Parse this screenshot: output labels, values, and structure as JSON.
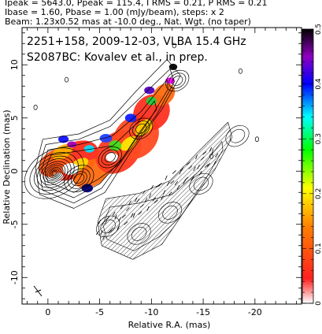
{
  "header": {
    "line1": "Ipeak = 5643.0, Ppeak = 115.4, I RMS = 0.21, P RMS = 0.21",
    "line2": "Ibase = 1.60, Pbase = 1.00 (mJy/beam), steps: x 2",
    "line3": "Beam: 1.23x0.52 mas at -10.0 deg., Nat. Wgt. (no taper)"
  },
  "chart_data": {
    "type": "heatmap",
    "title_line1": "2251+158, 2009-12-03, VLBA 15.4 GHz",
    "title_line2": "S2087BC: Kovalev et al., in prep.",
    "xlabel": "Relative R.A. (mas)",
    "ylabel": "Relative Declination (mas)",
    "xlim": [
      2.5,
      -24.5
    ],
    "ylim": [
      -12.5,
      13.5
    ],
    "xticks": [
      0,
      -5,
      -10,
      -15,
      -20
    ],
    "yticks": [
      -10,
      -5,
      0,
      5,
      10
    ],
    "colorbar": {
      "range": [
        0,
        0.5
      ],
      "ticks": [
        0,
        0.1,
        0.2,
        0.3,
        0.4,
        0.5
      ],
      "colors": [
        "#ffffff",
        "#ff0000",
        "#ff8000",
        "#ffff00",
        "#00ff00",
        "#00ffff",
        "#0000ff",
        "#800080",
        "#000000"
      ]
    },
    "total_intensity_contours": {
      "core": [
        0,
        0
      ],
      "knots": [
        [
          -3.0,
          -0.7
        ],
        [
          -6.0,
          1.3
        ],
        [
          -9.0,
          4.0
        ],
        [
          -12.5,
          8.5
        ]
      ]
    },
    "polarization_map_offset": [
      -5.8,
      -5.2
    ]
  }
}
